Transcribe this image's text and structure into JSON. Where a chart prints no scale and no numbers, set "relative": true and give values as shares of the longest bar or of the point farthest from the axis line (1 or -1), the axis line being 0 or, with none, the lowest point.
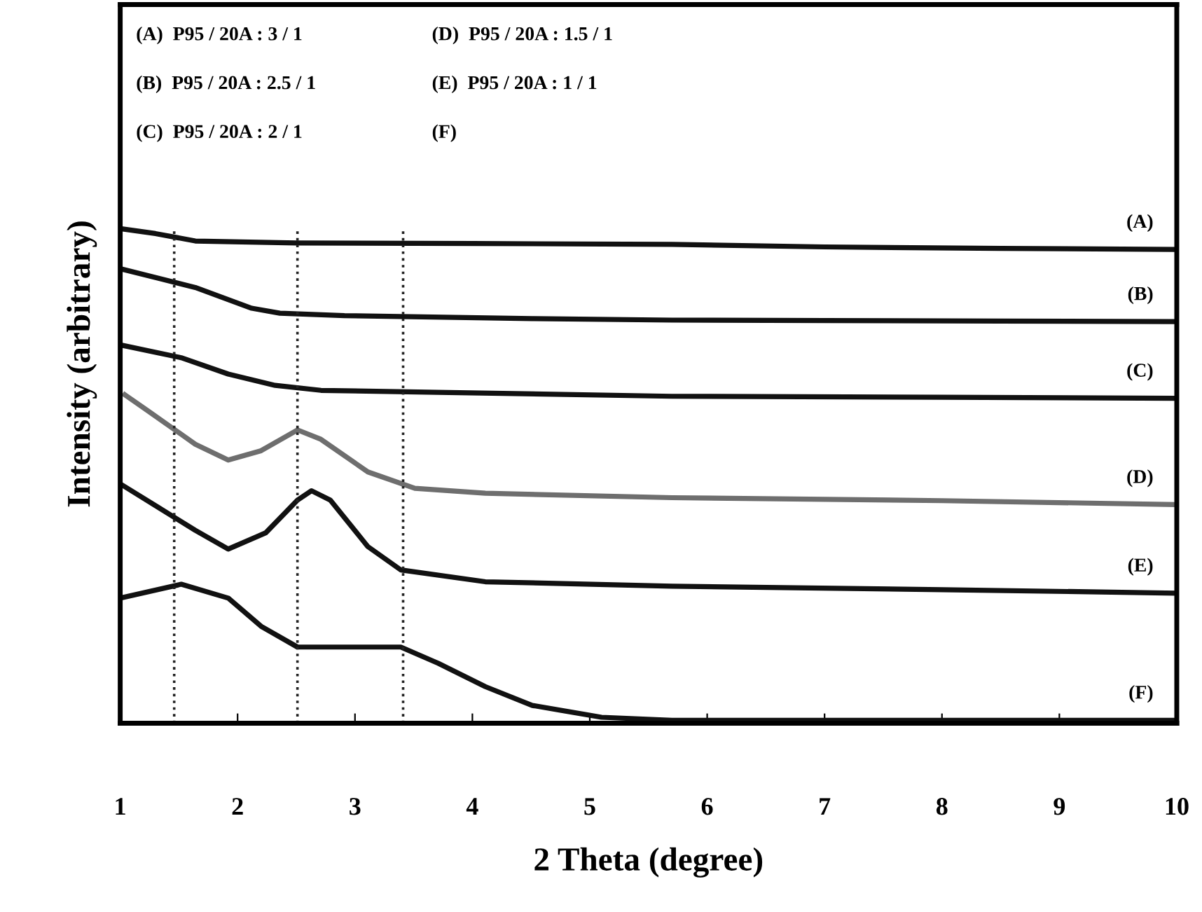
{
  "chart_data": {
    "type": "line",
    "relative": true,
    "xlabel": "2 Theta (degree)",
    "ylabel": "Intensity (arbitrary)",
    "xlim": [
      1,
      10
    ],
    "xticks": [
      1,
      2,
      3,
      4,
      5,
      6,
      7,
      8,
      9,
      10
    ],
    "grid": false,
    "marker": "none",
    "line_style": "solid",
    "annotations": [
      "(A)  P95 / 20A : 3 / 1",
      "(B)  P95 / 20A : 2.5 / 1",
      "(C)  P95 / 20A : 2 / 1",
      "(D)  P95 / 20A : 1.5 / 1",
      "(E)  P95 / 20A : 1 / 1",
      "(F)"
    ],
    "ref_lines": [
      {
        "axis": "x",
        "value": 1.46,
        "line_style": "dotted"
      },
      {
        "axis": "x",
        "value": 2.51,
        "line_style": "dotted"
      },
      {
        "axis": "x",
        "value": 3.41,
        "line_style": "dotted"
      }
    ],
    "series": [
      {
        "name": "(A)",
        "color": "#111111",
        "x": [
          1,
          1.3,
          1.64,
          2.5,
          4,
          5.7,
          7,
          8.5,
          10
        ],
        "values": [
          1.0,
          0.99,
          0.975,
          0.971,
          0.97,
          0.968,
          0.963,
          0.96,
          0.958
        ]
      },
      {
        "name": "(B)",
        "color": "#111111",
        "x": [
          1,
          1.32,
          1.64,
          2.12,
          2.36,
          2.91,
          4.51,
          5.7,
          7,
          8.5,
          10
        ],
        "values": [
          0.919,
          0.9,
          0.881,
          0.839,
          0.829,
          0.824,
          0.818,
          0.815,
          0.814,
          0.813,
          0.812
        ]
      },
      {
        "name": "(C)",
        "color": "#111111",
        "x": [
          1,
          1.52,
          1.92,
          2.32,
          2.71,
          3.71,
          5.7,
          8,
          10
        ],
        "values": [
          0.765,
          0.739,
          0.706,
          0.683,
          0.673,
          0.669,
          0.661,
          0.659,
          0.657
        ]
      },
      {
        "name": "(D)",
        "color": "#6e6e6e",
        "x": [
          1.04,
          1.24,
          1.64,
          1.92,
          2.2,
          2.51,
          2.71,
          3.11,
          3.51,
          4.11,
          5.7,
          8,
          10
        ],
        "values": [
          0.664,
          0.631,
          0.564,
          0.532,
          0.551,
          0.593,
          0.574,
          0.508,
          0.475,
          0.465,
          0.456,
          0.45,
          0.442
        ]
      },
      {
        "name": "(E)",
        "color": "#111111",
        "x": [
          1,
          1.32,
          1.64,
          1.92,
          2.24,
          2.51,
          2.63,
          2.79,
          3.11,
          3.39,
          4.11,
          5.7,
          8,
          10
        ],
        "values": [
          0.484,
          0.437,
          0.39,
          0.352,
          0.385,
          0.451,
          0.47,
          0.451,
          0.357,
          0.31,
          0.286,
          0.277,
          0.27,
          0.263
        ]
      },
      {
        "name": "(F)",
        "color": "#111111",
        "x": [
          1,
          1.52,
          1.92,
          2.2,
          2.51,
          2.91,
          3.39,
          3.71,
          4.11,
          4.51,
          5.1,
          5.7,
          8,
          10
        ],
        "values": [
          0.253,
          0.281,
          0.253,
          0.196,
          0.154,
          0.154,
          0.154,
          0.121,
          0.074,
          0.036,
          0.012,
          0.006,
          0.006,
          0.006
        ]
      }
    ]
  }
}
